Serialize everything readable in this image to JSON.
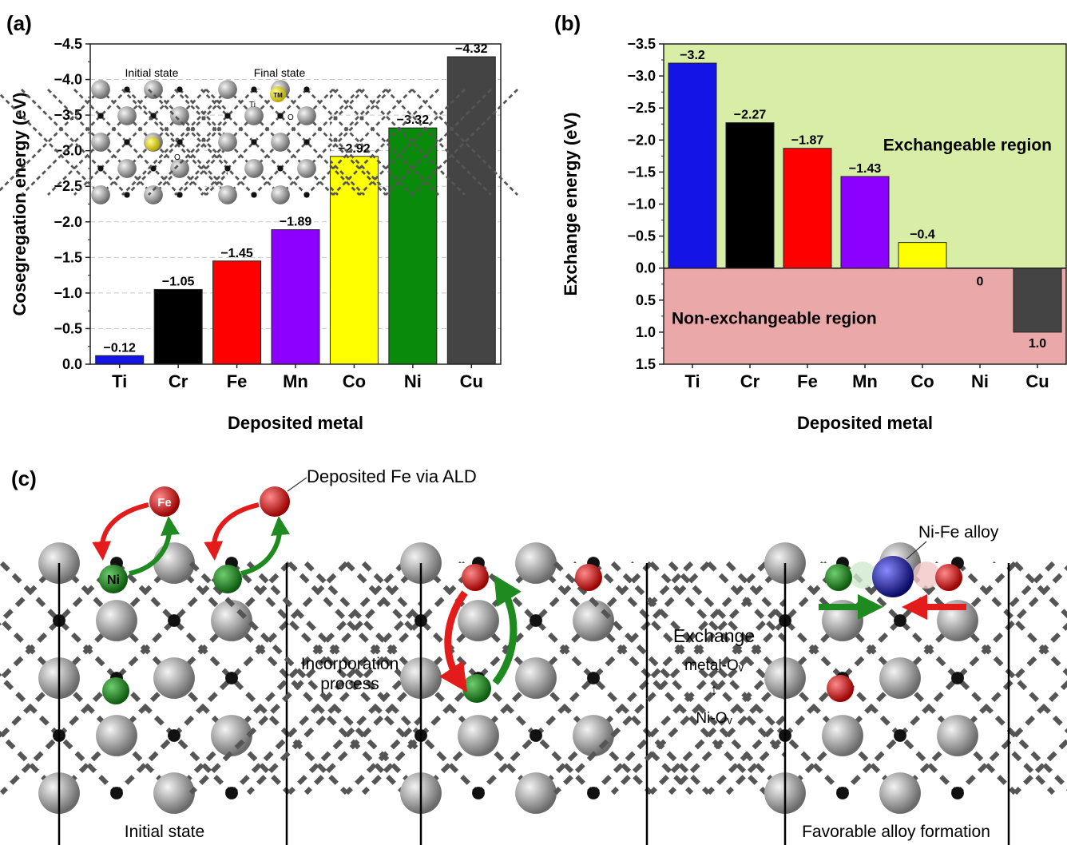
{
  "panel_labels": {
    "a": "(a)",
    "b": "(b)",
    "c": "(c)"
  },
  "chart_data": [
    {
      "type": "bar",
      "panel": "(a)",
      "categories": [
        "Ti",
        "Cr",
        "Fe",
        "Mn",
        "Co",
        "Ni",
        "Cu"
      ],
      "values": [
        -0.12,
        -1.05,
        -1.45,
        -1.89,
        -2.92,
        -3.32,
        -4.32
      ],
      "value_labels": [
        "−0.12",
        "−1.05",
        "−1.45",
        "−1.89",
        "−2.92",
        "−3.32",
        "−4.32"
      ],
      "colors": [
        "#1414e6",
        "#000000",
        "#ff0000",
        "#8c00ff",
        "#ffff00",
        "#0a8a0a",
        "#444444"
      ],
      "xlabel": "Deposited metal",
      "ylabel": "Cosegregation energy (eV)",
      "ylim": [
        0.0,
        -4.5
      ],
      "y_inverted": true,
      "yticks": [
        0.0,
        -0.5,
        -1.0,
        -1.5,
        -2.0,
        -2.5,
        -3.0,
        -3.5,
        -4.0,
        -4.5
      ],
      "ytick_labels": [
        "0.0",
        "−0.5",
        "−1.0",
        "−1.5",
        "−2.0",
        "−2.5",
        "−3.0",
        "−3.5",
        "−4.0",
        "−4.5"
      ],
      "grid": "horizontal dashed",
      "insets": {
        "initial": "Initial state",
        "final": "Final state",
        "tm_label": "TM",
        "ti_label": "Ti",
        "o_label": "O"
      }
    },
    {
      "type": "bar",
      "panel": "(b)",
      "categories": [
        "Ti",
        "Cr",
        "Fe",
        "Mn",
        "Co",
        "Ni",
        "Cu"
      ],
      "values": [
        -3.2,
        -2.27,
        -1.87,
        -1.43,
        -0.4,
        0,
        1.0
      ],
      "value_labels": [
        "−3.2",
        "−2.27",
        "−1.87",
        "−1.43",
        "−0.4",
        "0",
        "1.0"
      ],
      "colors": [
        "#1414e6",
        "#000000",
        "#ff0000",
        "#8c00ff",
        "#ffff00",
        "#0a8a0a",
        "#444444"
      ],
      "xlabel": "Deposited metal",
      "ylabel": "Exchange energy (eV)",
      "ylim": [
        1.5,
        -3.5
      ],
      "y_inverted": true,
      "yticks": [
        1.5,
        1.0,
        0.5,
        0.0,
        -0.5,
        -1.0,
        -1.5,
        -2.0,
        -2.5,
        -3.0,
        -3.5
      ],
      "ytick_labels": [
        "1.5",
        "1.0",
        "0.5",
        "0.0",
        "−0.5",
        "−1.0",
        "−1.5",
        "−2.0",
        "−2.5",
        "−3.0",
        "−3.5"
      ],
      "regions": [
        {
          "label": "Exchangeable region",
          "from": 0.0,
          "to": -3.5,
          "color": "#d8eda6"
        },
        {
          "label": "Non-exchangeable region",
          "from": 1.5,
          "to": 0.0,
          "color": "#eba8a8"
        }
      ]
    }
  ],
  "schematic": {
    "deposited_label": "Deposited Fe via ALD",
    "fe_label": "Fe",
    "ni_label": "Ni",
    "alloy_label": "Ni-Fe alloy",
    "incorporation_label": [
      "Incorporation",
      "process"
    ],
    "exchange_label": [
      "Exchange",
      "metal-Oᵥ",
      "↕",
      "Ni-Oᵥ"
    ],
    "initial_caption": "Initial state",
    "final_caption": "Favorable alloy formation",
    "colors": {
      "ni": "#1f7a1f",
      "fe": "#cc1111",
      "alloy": "#1a1a99",
      "lattice": "#9a9a9a",
      "oxygen": "#111111"
    }
  }
}
